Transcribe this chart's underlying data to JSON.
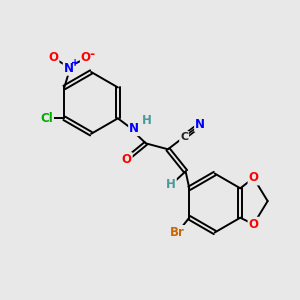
{
  "bg_color": "#e8e8e8",
  "bond_color": "#000000",
  "atom_colors": {
    "O": "#ff0000",
    "N": "#0000ff",
    "Cl": "#00aa00",
    "Br": "#cc6600",
    "C": "#222222",
    "H": "#4a9a9a"
  },
  "figsize": [
    3.0,
    3.0
  ],
  "dpi": 100
}
